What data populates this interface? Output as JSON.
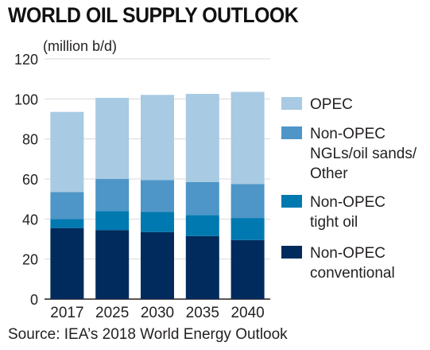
{
  "title": "WORLD OIL SUPPLY OUTLOOK",
  "source": "Source: IEA’s 2018 World Energy Outlook",
  "chart_data": {
    "type": "bar",
    "stacked": true,
    "title": "WORLD OIL SUPPLY OUTLOOK",
    "ylabel": "(million b/d)",
    "xlabel": "",
    "categories": [
      "2017",
      "2025",
      "2030",
      "2035",
      "2040"
    ],
    "ylim": [
      0,
      120
    ],
    "yticks": [
      0,
      20,
      40,
      60,
      80,
      100,
      120
    ],
    "grid": true,
    "legend_position": "right",
    "series": [
      {
        "name": "Non-OPEC conventional",
        "label_lines": [
          "Non-OPEC",
          "conventional"
        ],
        "color": "#002b5c",
        "values": [
          35.5,
          34.5,
          33.5,
          31.5,
          29.5
        ]
      },
      {
        "name": "Non-OPEC tight oil",
        "label_lines": [
          "Non-OPEC",
          "tight oil"
        ],
        "color": "#0079b0",
        "values": [
          4.5,
          9.5,
          10.0,
          10.5,
          11.0
        ]
      },
      {
        "name": "Non-OPEC NGLs/oil sands/Other",
        "label_lines": [
          "Non-OPEC",
          "NGLs/oil sands/",
          "Other"
        ],
        "color": "#4d96c7",
        "values": [
          13.5,
          16.0,
          16.0,
          16.5,
          17.0
        ]
      },
      {
        "name": "OPEC",
        "label_lines": [
          "OPEC"
        ],
        "color": "#a8cae3",
        "values": [
          40.0,
          40.5,
          42.5,
          44.0,
          46.0
        ]
      }
    ]
  }
}
